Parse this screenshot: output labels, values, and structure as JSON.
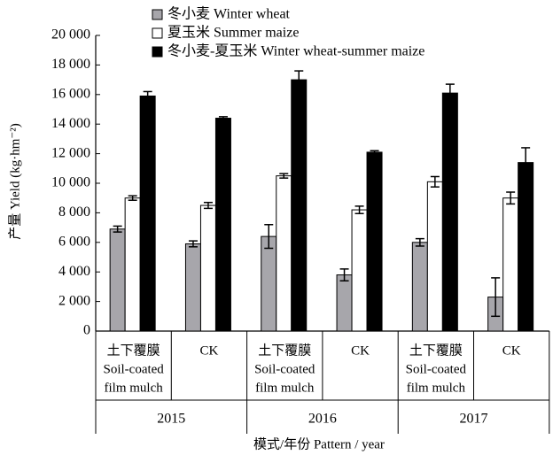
{
  "chart_data": {
    "type": "bar",
    "y_label": "产量 Yield (kg·hm⁻²)",
    "x_label": "模式/年份 Pattern / year",
    "categories": [
      [
        "土下覆膜",
        "Soil-coated",
        "film mulch"
      ],
      [
        "CK"
      ],
      [
        "土下覆膜",
        "Soil-coated",
        "film mulch"
      ],
      [
        "CK"
      ],
      [
        "土下覆膜",
        "Soil-coated",
        "film mulch"
      ],
      [
        "CK"
      ]
    ],
    "groups": [
      "2015",
      "2016",
      "2017"
    ],
    "series": [
      {
        "name": "冬小麦 Winter wheat",
        "color": "#a7a6ab",
        "values": [
          6900,
          5900,
          6400,
          3800,
          6000,
          2300
        ],
        "errors": [
          200,
          200,
          800,
          400,
          250,
          1300
        ]
      },
      {
        "name": "夏玉米 Summer maize",
        "color": "#ffffff",
        "values": [
          9000,
          8500,
          10500,
          8200,
          10100,
          9000
        ],
        "errors": [
          150,
          200,
          150,
          250,
          350,
          400
        ]
      },
      {
        "name": "冬小麦-夏玉米 Winter wheat-summer maize",
        "color": "#000000",
        "values": [
          15900,
          14400,
          17000,
          12100,
          16100,
          11400
        ],
        "errors": [
          300,
          100,
          600,
          100,
          600,
          1000
        ]
      }
    ],
    "ylim": [
      0,
      20000
    ],
    "yticks": [
      0,
      {
        "value": 2000,
        "label": "2 000"
      },
      {
        "value": 4000,
        "label": "4 000"
      },
      {
        "value": 6000,
        "label": "6 000"
      },
      {
        "value": 8000,
        "label": "8 000"
      },
      {
        "value": 10000,
        "label": "10 000"
      },
      {
        "value": 12000,
        "label": "12 000"
      },
      {
        "value": 14000,
        "label": "14 000"
      },
      {
        "value": 16000,
        "label": "16 000"
      },
      {
        "value": 18000,
        "label": "18 000"
      },
      {
        "value": 20000,
        "label": "20 000"
      }
    ]
  }
}
